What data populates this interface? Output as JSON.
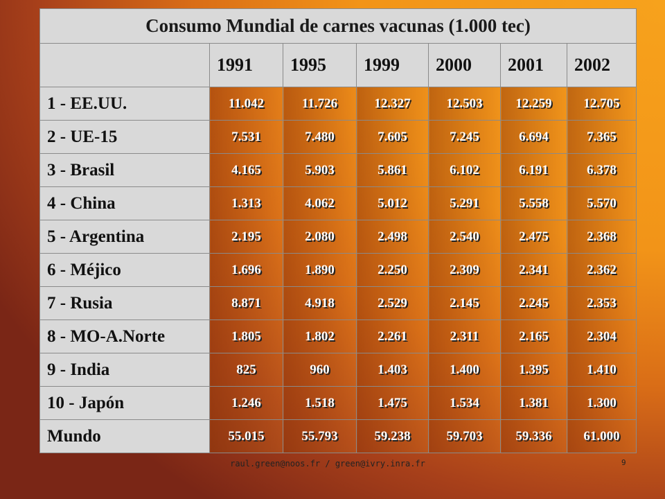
{
  "table": {
    "title": "Consumo Mundial de carnes vacunas (1.000 tec)",
    "columns": [
      "1991",
      "1995",
      "1999",
      "2000",
      "2001",
      "2002"
    ],
    "rows": [
      [
        "1 - EE.UU.",
        "11.042",
        "11.726",
        "12.327",
        "12.503",
        "12.259",
        "12.705"
      ],
      [
        "2 - UE-15",
        "7.531",
        "7.480",
        "7.605",
        "7.245",
        "6.694",
        "7.365"
      ],
      [
        "3 - Brasil",
        "4.165",
        "5.903",
        "5.861",
        "6.102",
        "6.191",
        "6.378"
      ],
      [
        "4 - China",
        "1.313",
        "4.062",
        "5.012",
        "5.291",
        "5.558",
        "5.570"
      ],
      [
        "5 - Argentina",
        "2.195",
        "2.080",
        "2.498",
        "2.540",
        "2.475",
        "2.368"
      ],
      [
        "6 - Méjico",
        "1.696",
        "1.890",
        "2.250",
        "2.309",
        "2.341",
        "2.362"
      ],
      [
        "7 - Rusia",
        "8.871",
        "4.918",
        "2.529",
        "2.145",
        "2.245",
        "2.353"
      ],
      [
        "8 - MO-A.Norte",
        "1.805",
        "1.802",
        "2.261",
        "2.311",
        "2.165",
        "2.304"
      ],
      [
        "9 - India",
        "825",
        "960",
        "1.403",
        "1.400",
        "1.395",
        "1.410"
      ],
      [
        "10 - Japón",
        "1.246",
        "1.518",
        "1.475",
        "1.534",
        "1.381",
        "1.300"
      ],
      [
        "Mundo",
        "55.015",
        "55.793",
        "59.238",
        "59.703",
        "59.336",
        "61.000"
      ]
    ]
  },
  "footer": {
    "email": "raul.green@noos.fr / green@ivry.inra.fr",
    "page": "9"
  }
}
